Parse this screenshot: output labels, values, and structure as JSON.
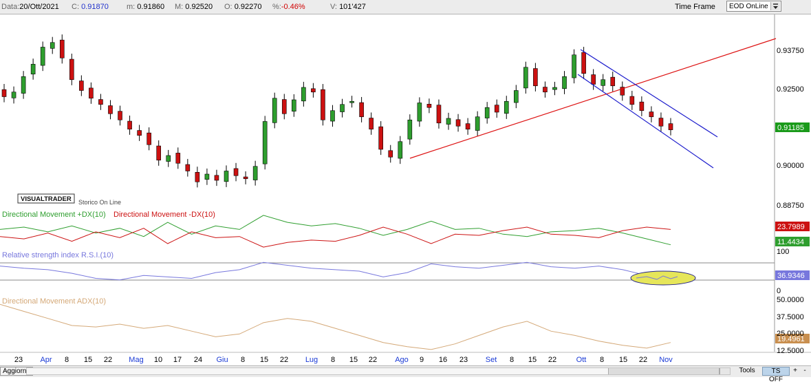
{
  "toolbar": {
    "date_label": "Data:",
    "date_value": "20/Ott/2021",
    "close_label": "C:",
    "close_value": "0.91870",
    "min_label": "m:",
    "min_value": "0.91860",
    "max_label": "M:",
    "max_value": "0.92520",
    "open_label": "O:",
    "open_value": "0.92270",
    "pct_label": "%:",
    "pct_value": "-0.46%",
    "volume_label": "V:",
    "volume_value": "101'427",
    "timeframe_label": "Time Frame",
    "timeframe_value": "EOD OnLine"
  },
  "bottombar": {
    "refresh_label": "Aggiorna",
    "tools_label": "Tools",
    "ts_label": "TS OFF",
    "zoom_in_label": "+",
    "zoom_out_label": "-"
  },
  "panels": {
    "logo_text": "VISUALTRADER",
    "logo_sub": "Storico On Line",
    "dmi_plus_title": "Directional Movement +DX(10)",
    "dmi_minus_title": "Directional Movement -DX(10)",
    "rsi_title": "Relative strength index R.S.I.(10)",
    "adx_title": "Directional Movement ADX(10)"
  },
  "colors": {
    "up": "#2e9e2e",
    "down": "#cc1111",
    "trend_red": "#dd1111",
    "channel_blue": "#1a1acc",
    "rsi": "#7777dd",
    "adx": "#d4a877",
    "highlight": "#e6e65a"
  },
  "chart_data": [
    {
      "type": "candlestick",
      "instrument_price_axis": [
        "0.93750",
        "0.92500",
        "0.91185",
        "0.90000",
        "0.88750"
      ],
      "last_price": "0.91185",
      "x_labels": [
        {
          "label": "23",
          "month": false
        },
        {
          "label": "Apr",
          "month": true
        },
        {
          "label": "8",
          "month": false
        },
        {
          "label": "15",
          "month": false
        },
        {
          "label": "22",
          "month": false
        },
        {
          "label": "Mag",
          "month": true
        },
        {
          "label": "10",
          "month": false
        },
        {
          "label": "17",
          "month": false
        },
        {
          "label": "24",
          "month": false
        },
        {
          "label": "Giu",
          "month": true
        },
        {
          "label": "8",
          "month": false
        },
        {
          "label": "15",
          "month": false
        },
        {
          "label": "22",
          "month": false
        },
        {
          "label": "Lug",
          "month": true
        },
        {
          "label": "8",
          "month": false
        },
        {
          "label": "15",
          "month": false
        },
        {
          "label": "22",
          "month": false
        },
        {
          "label": "Ago",
          "month": true
        },
        {
          "label": "9",
          "month": false
        },
        {
          "label": "16",
          "month": false
        },
        {
          "label": "23",
          "month": false
        },
        {
          "label": "Set",
          "month": true
        },
        {
          "label": "8",
          "month": false
        },
        {
          "label": "15",
          "month": false
        },
        {
          "label": "22",
          "month": false
        },
        {
          "label": "Ott",
          "month": true
        },
        {
          "label": "8",
          "month": false
        },
        {
          "label": "15",
          "month": false
        },
        {
          "label": "22",
          "month": false
        },
        {
          "label": "Nov",
          "month": true
        }
      ],
      "closes_approx": [
        0.9225,
        0.924,
        0.929,
        0.933,
        0.9385,
        0.94,
        0.935,
        0.928,
        0.9245,
        0.922,
        0.92,
        0.917,
        0.915,
        0.912,
        0.91,
        0.907,
        0.902,
        0.9035,
        0.901,
        0.8985,
        0.895,
        0.8975,
        0.8955,
        0.8985,
        0.897,
        0.896,
        0.9,
        0.9145,
        0.922,
        0.917,
        0.9215,
        0.9255,
        0.924,
        0.915,
        0.918,
        0.92,
        0.921,
        0.916,
        0.912,
        0.9055,
        0.903,
        0.908,
        0.915,
        0.9205,
        0.919,
        0.914,
        0.9155,
        0.913,
        0.912,
        0.916,
        0.919,
        0.9175,
        0.921,
        0.9245,
        0.932,
        0.926,
        0.924,
        0.9255,
        0.929,
        0.936,
        0.93,
        0.9265,
        0.928,
        0.926,
        0.923,
        0.92,
        0.918,
        0.916,
        0.913,
        0.9118
      ]
    },
    {
      "type": "line",
      "title": "Directional Movement",
      "series": [
        {
          "name": "+DX(10)",
          "last_value": "11.4434",
          "values": [
            24,
            26,
            22,
            27,
            21,
            25,
            18,
            30,
            20,
            27,
            24,
            36,
            30,
            27,
            29,
            25,
            19,
            24,
            31,
            24,
            25,
            20,
            18,
            22,
            23,
            25,
            21,
            16,
            11
          ]
        },
        {
          "name": "-DX(10)",
          "last_value": "23.7989",
          "values": [
            18,
            16,
            21,
            14,
            22,
            17,
            25,
            12,
            22,
            17,
            18,
            9,
            13,
            15,
            14,
            19,
            26,
            20,
            12,
            20,
            19,
            23,
            26,
            20,
            19,
            17,
            23,
            26,
            24
          ]
        }
      ]
    },
    {
      "type": "line",
      "title": "Relative strength index R.S.I.(10)",
      "y_labels": [
        "100",
        "0"
      ],
      "series": [
        {
          "name": "R.S.I.(10)",
          "last_value": "36.9346",
          "values": [
            55,
            52,
            50,
            45,
            38,
            36,
            42,
            40,
            38,
            46,
            50,
            60,
            56,
            52,
            50,
            48,
            40,
            46,
            58,
            54,
            52,
            56,
            60,
            54,
            52,
            55,
            50,
            42,
            37
          ]
        }
      ]
    },
    {
      "type": "line",
      "title": "Directional Movement ADX(10)",
      "y_labels": [
        "50.0000",
        "37.5000",
        "25.0000",
        "12.5000"
      ],
      "series": [
        {
          "name": "ADX(10)",
          "last_value": "19.4961",
          "values": [
            46,
            41,
            36,
            31,
            30,
            32,
            29,
            31,
            27,
            23,
            25,
            33,
            36,
            34,
            29,
            24,
            19,
            16,
            14,
            18,
            24,
            30,
            34,
            27,
            24,
            20,
            17,
            15,
            19
          ]
        }
      ]
    }
  ]
}
